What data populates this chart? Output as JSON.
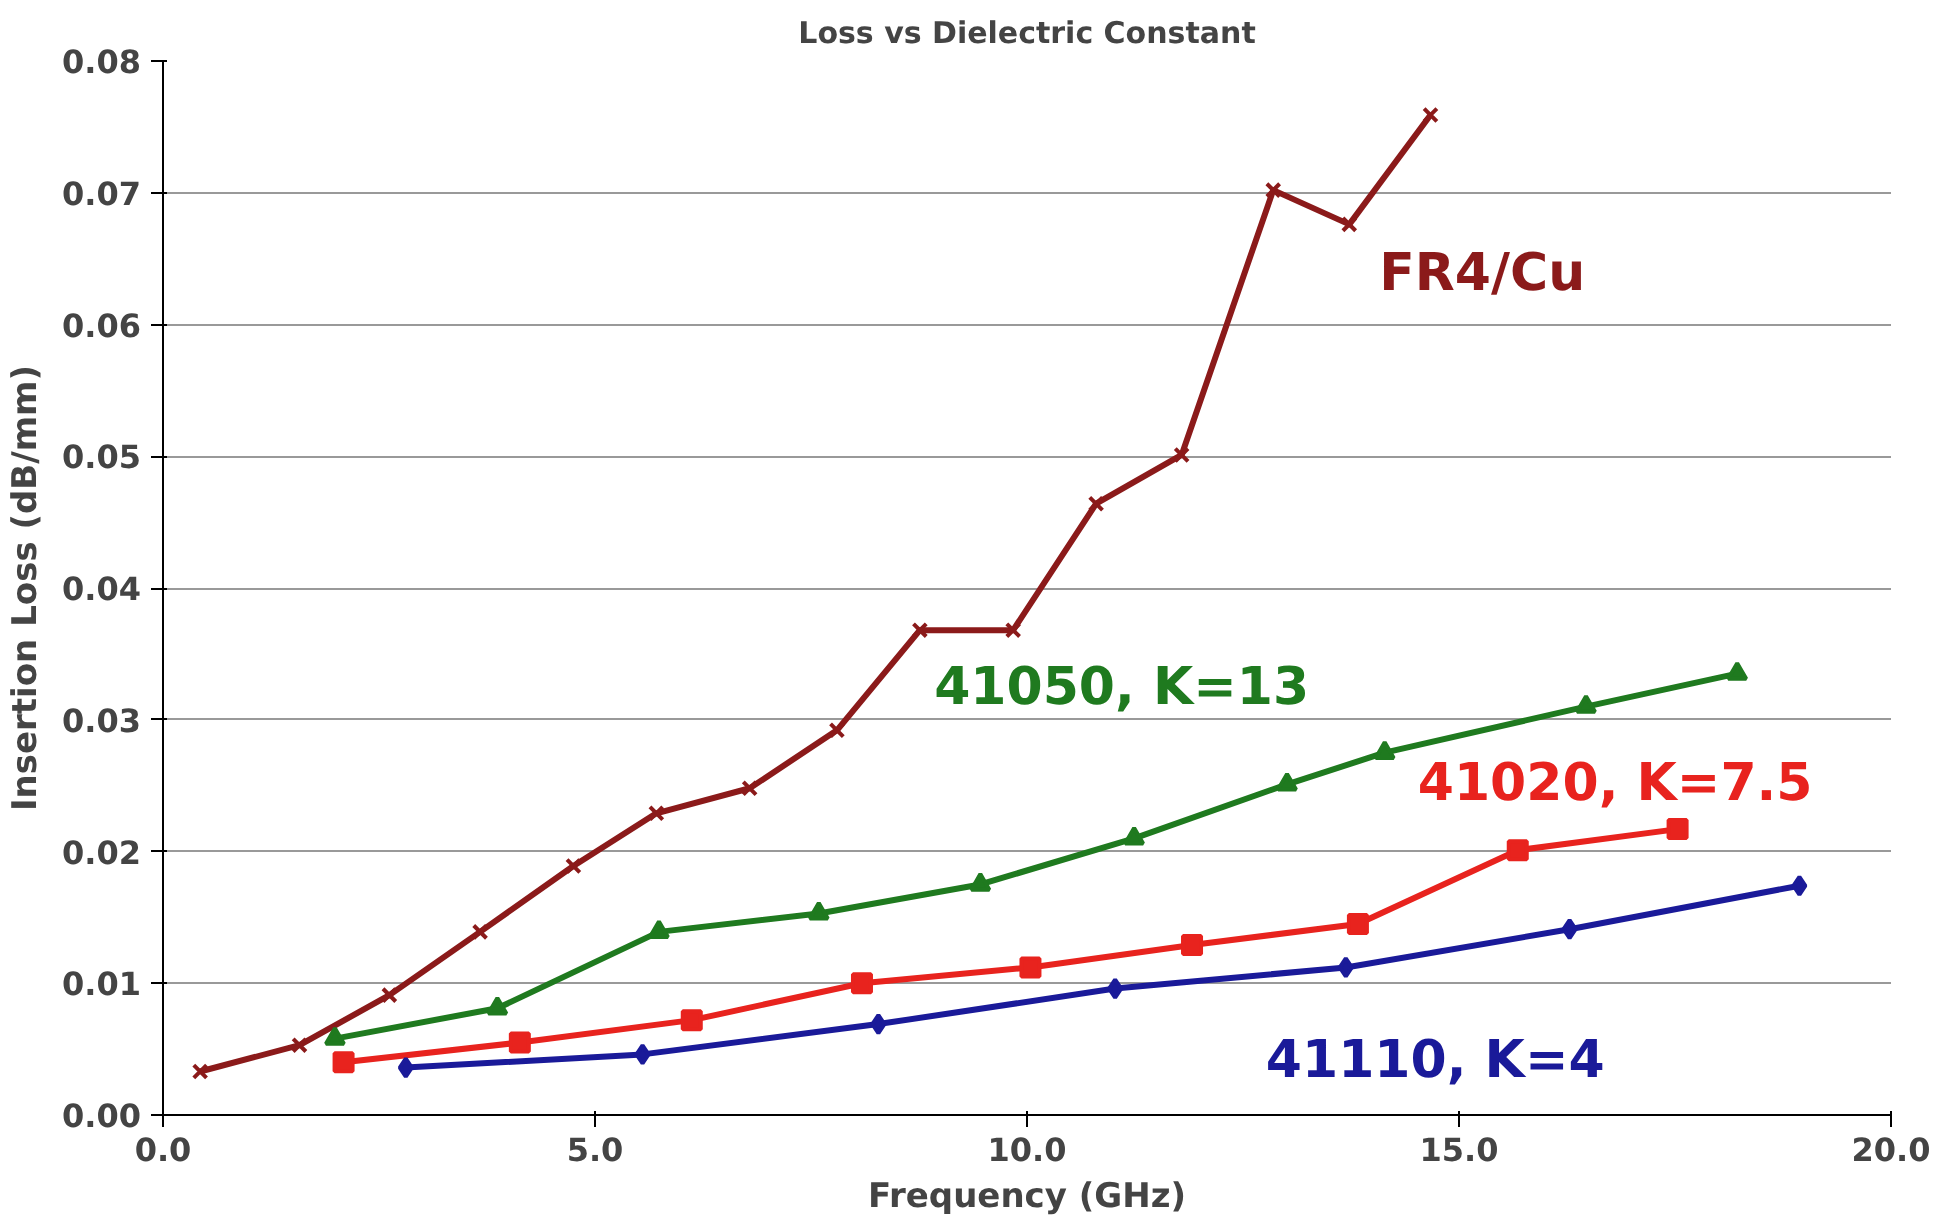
{
  "chart_data": {
    "type": "line",
    "title": "Loss vs Dielectric Constant",
    "xlabel": "Frequency (GHz)",
    "ylabel": "Insertion Loss (dB/mm)",
    "xlim": [
      0,
      20
    ],
    "ylim": [
      0,
      0.08
    ],
    "xticks": [
      {
        "value": 0,
        "label": "0.0"
      },
      {
        "value": 5,
        "label": "5.0"
      },
      {
        "value": 10,
        "label": "10.0"
      },
      {
        "value": 15,
        "label": "15.0"
      },
      {
        "value": 20,
        "label": "20.0"
      }
    ],
    "yticks": [
      {
        "value": 0,
        "label": "0.00"
      },
      0.01,
      0.02,
      0.03,
      0.04,
      0.05,
      0.06,
      0.07,
      0.08
    ],
    "grid": "y",
    "series": [
      {
        "name": "FR4/Cu",
        "color": "#8b1a1a",
        "marker": "cross",
        "x": [
          0.43,
          1.58,
          2.62,
          3.67,
          4.75,
          5.71,
          6.79,
          7.8,
          8.76,
          9.84,
          10.8,
          11.79,
          12.85,
          13.73,
          14.67
        ],
        "values": [
          0.0033,
          0.0053,
          0.0091,
          0.0139,
          0.0189,
          0.0229,
          0.0248,
          0.0292,
          0.0368,
          0.0368,
          0.0464,
          0.0501,
          0.0702,
          0.0676,
          0.0759
        ]
      },
      {
        "name": "41050, K=13",
        "color": "#1f7a1f",
        "marker": "triangle",
        "x": [
          1.99,
          3.87,
          5.74,
          7.59,
          9.46,
          11.24,
          13.01,
          14.14,
          16.47,
          18.22
        ],
        "values": [
          0.0058,
          0.0081,
          0.0139,
          0.0153,
          0.0175,
          0.021,
          0.0251,
          0.0275,
          0.031,
          0.0335
        ]
      },
      {
        "name": "41020, K=7.5",
        "color": "#e8231e",
        "marker": "square",
        "x": [
          2.09,
          4.13,
          6.12,
          8.09,
          10.04,
          11.91,
          13.83,
          15.68,
          17.53
        ],
        "values": [
          0.004,
          0.0055,
          0.0072,
          0.01,
          0.0112,
          0.0129,
          0.0145,
          0.0201,
          0.0217
        ]
      },
      {
        "name": "41110, K=4",
        "color": "#1a1a99",
        "marker": "diamond",
        "x": [
          2.81,
          5.55,
          8.28,
          11.02,
          13.69,
          16.28,
          18.94
        ],
        "values": [
          0.0036,
          0.0046,
          0.0069,
          0.0096,
          0.0112,
          0.0141,
          0.0174
        ]
      }
    ]
  }
}
